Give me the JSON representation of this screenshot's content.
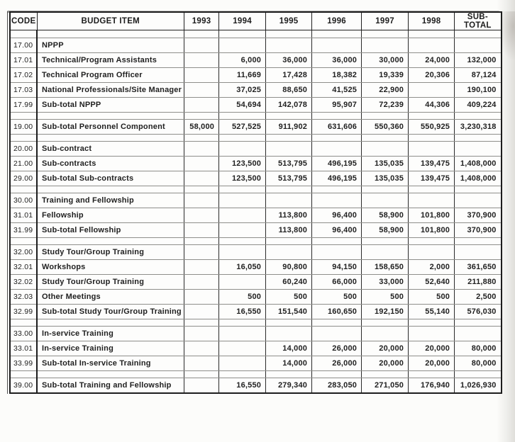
{
  "document": {
    "kind": "scanned budget table",
    "ink_color": "#212121",
    "paper_color": "#fcfcfa",
    "grid_color": "#2a2a2a"
  },
  "table": {
    "columns": [
      "CODE",
      "BUDGET ITEM",
      "1993",
      "1994",
      "1995",
      "1996",
      "1997",
      "1998",
      "SUB-TOTAL"
    ],
    "rows": [
      {
        "kind": "firstgap"
      },
      {
        "kind": "section",
        "code": "17.00",
        "item": "NPPP",
        "values": [
          "",
          "",
          "",
          "",
          "",
          "",
          ""
        ]
      },
      {
        "kind": "item",
        "code": "17.01",
        "item": "Technical/Program Assistants",
        "values": [
          "",
          "6,000",
          "36,000",
          "36,000",
          "30,000",
          "24,000",
          "132,000"
        ]
      },
      {
        "kind": "item",
        "code": "17.02",
        "item": "Technical Program Officer",
        "values": [
          "",
          "11,669",
          "17,428",
          "18,382",
          "19,339",
          "20,306",
          "87,124"
        ]
      },
      {
        "kind": "item",
        "code": "17.03",
        "item": "National Professionals/Site Manager",
        "values": [
          "",
          "37,025",
          "88,650",
          "41,525",
          "22,900",
          "",
          "190,100"
        ]
      },
      {
        "kind": "subtotal",
        "code": "17.99",
        "item": "Sub-total NPPP",
        "values": [
          "",
          "54,694",
          "142,078",
          "95,907",
          "72,239",
          "44,306",
          "409,224"
        ]
      },
      {
        "kind": "spacer"
      },
      {
        "kind": "subtotal",
        "code": "19.00",
        "item": "Sub-total Personnel Component",
        "values": [
          "58,000",
          "527,525",
          "911,902",
          "631,606",
          "550,360",
          "550,925",
          "3,230,318"
        ]
      },
      {
        "kind": "spacer"
      },
      {
        "kind": "section",
        "code": "20.00",
        "item": "Sub-contract",
        "values": [
          "",
          "",
          "",
          "",
          "",
          "",
          ""
        ]
      },
      {
        "kind": "item",
        "code": "21.00",
        "item": "Sub-contracts",
        "values": [
          "",
          "123,500",
          "513,795",
          "496,195",
          "135,035",
          "139,475",
          "1,408,000"
        ]
      },
      {
        "kind": "subtotal",
        "code": "29.00",
        "item": "Sub-total Sub-contracts",
        "values": [
          "",
          "123,500",
          "513,795",
          "496,195",
          "135,035",
          "139,475",
          "1,408,000"
        ]
      },
      {
        "kind": "spacer"
      },
      {
        "kind": "section",
        "code": "30.00",
        "item": "Training and Fellowship",
        "values": [
          "",
          "",
          "",
          "",
          "",
          "",
          ""
        ]
      },
      {
        "kind": "item",
        "code": "31.01",
        "item": "Fellowship",
        "values": [
          "",
          "",
          "113,800",
          "96,400",
          "58,900",
          "101,800",
          "370,900"
        ]
      },
      {
        "kind": "subtotal",
        "code": "31.99",
        "item": "Sub-total Fellowship",
        "values": [
          "",
          "",
          "113,800",
          "96,400",
          "58,900",
          "101,800",
          "370,900"
        ]
      },
      {
        "kind": "spacer"
      },
      {
        "kind": "section",
        "code": "32.00",
        "item": "Study Tour/Group Training",
        "values": [
          "",
          "",
          "",
          "",
          "",
          "",
          ""
        ]
      },
      {
        "kind": "item",
        "code": "32.01",
        "item": "Workshops",
        "values": [
          "",
          "16,050",
          "90,800",
          "94,150",
          "158,650",
          "2,000",
          "361,650"
        ]
      },
      {
        "kind": "item",
        "code": "32.02",
        "item": "Study Tour/Group Training",
        "values": [
          "",
          "",
          "60,240",
          "66,000",
          "33,000",
          "52,640",
          "211,880"
        ]
      },
      {
        "kind": "item",
        "code": "32.03",
        "item": "Other Meetings",
        "values": [
          "",
          "500",
          "500",
          "500",
          "500",
          "500",
          "2,500"
        ]
      },
      {
        "kind": "subtotal",
        "code": "32.99",
        "item": "Sub-total Study Tour/Group Training",
        "values": [
          "",
          "16,550",
          "151,540",
          "160,650",
          "192,150",
          "55,140",
          "576,030"
        ]
      },
      {
        "kind": "spacer"
      },
      {
        "kind": "section",
        "code": "33.00",
        "item": "In-service Training",
        "values": [
          "",
          "",
          "",
          "",
          "",
          "",
          ""
        ]
      },
      {
        "kind": "item",
        "code": "33.01",
        "item": "In-service Training",
        "values": [
          "",
          "",
          "14,000",
          "26,000",
          "20,000",
          "20,000",
          "80,000"
        ]
      },
      {
        "kind": "subtotal",
        "code": "33.99",
        "item": "Sub-total In-service Training",
        "values": [
          "",
          "",
          "14,000",
          "26,000",
          "20,000",
          "20,000",
          "80,000"
        ]
      },
      {
        "kind": "spacer"
      },
      {
        "kind": "subtotal",
        "code": "39.00",
        "item": "Sub-total Training and Fellowship",
        "values": [
          "",
          "16,550",
          "279,340",
          "283,050",
          "271,050",
          "176,940",
          "1,026,930"
        ]
      }
    ]
  }
}
